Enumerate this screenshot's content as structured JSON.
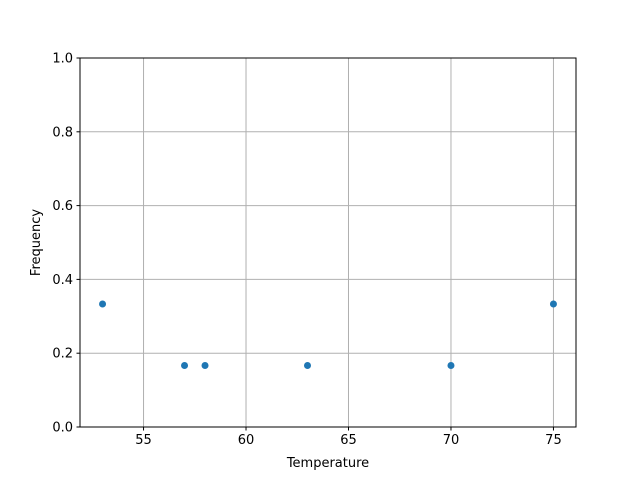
{
  "chart_data": {
    "type": "scatter",
    "title": "",
    "xlabel": "Temperature",
    "ylabel": "Frequency",
    "xlim": [
      51.9,
      76.1
    ],
    "ylim": [
      0,
      1
    ],
    "xticks": [
      55,
      60,
      65,
      70,
      75
    ],
    "yticks": [
      0.0,
      0.2,
      0.4,
      0.6,
      0.8,
      1.0
    ],
    "ytick_labels": [
      "0.0",
      "0.2",
      "0.4",
      "0.6",
      "0.8",
      "1.0"
    ],
    "grid": true,
    "color": "#1f77b4",
    "x": [
      53,
      57,
      58,
      63,
      70,
      75
    ],
    "y": [
      0.3333,
      0.1667,
      0.1667,
      0.1667,
      0.1667,
      0.3333
    ]
  }
}
